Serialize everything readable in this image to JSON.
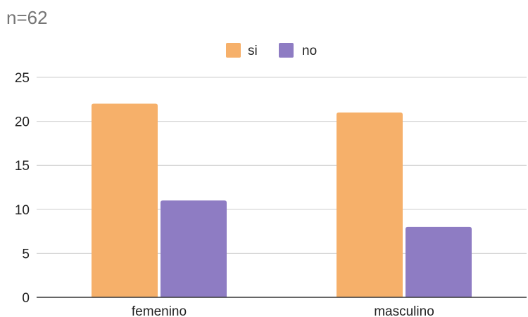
{
  "chart_data": {
    "type": "bar",
    "title": "n=62",
    "categories": [
      "femenino",
      "masculino"
    ],
    "series": [
      {
        "name": "si",
        "values": [
          22,
          21
        ],
        "color": "#F6B06A"
      },
      {
        "name": "no",
        "values": [
          11,
          8
        ],
        "color": "#8E7CC3"
      }
    ],
    "xlabel": "",
    "ylabel": "",
    "ylim": [
      0,
      25
    ],
    "yticks": [
      0,
      5,
      10,
      15,
      20,
      25
    ],
    "grid": true,
    "legend_position": "top-center"
  }
}
